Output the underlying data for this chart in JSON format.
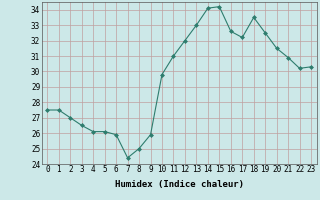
{
  "x": [
    0,
    1,
    2,
    3,
    4,
    5,
    6,
    7,
    8,
    9,
    10,
    11,
    12,
    13,
    14,
    15,
    16,
    17,
    18,
    19,
    20,
    21,
    22,
    23
  ],
  "y": [
    27.5,
    27.5,
    27.0,
    26.5,
    26.1,
    26.1,
    25.9,
    24.4,
    25.0,
    25.9,
    29.8,
    31.0,
    32.0,
    33.0,
    34.1,
    34.2,
    32.6,
    32.2,
    33.5,
    32.5,
    31.5,
    30.9,
    30.2,
    30.3
  ],
  "line_color": "#2e7d6e",
  "marker": "D",
  "markersize": 2.0,
  "linewidth": 0.8,
  "xlabel": "Humidex (Indice chaleur)",
  "xlim": [
    -0.5,
    23.5
  ],
  "ylim": [
    24,
    34.5
  ],
  "yticks": [
    24,
    25,
    26,
    27,
    28,
    29,
    30,
    31,
    32,
    33,
    34
  ],
  "xticks": [
    0,
    1,
    2,
    3,
    4,
    5,
    6,
    7,
    8,
    9,
    10,
    11,
    12,
    13,
    14,
    15,
    16,
    17,
    18,
    19,
    20,
    21,
    22,
    23
  ],
  "bg_color": "#cce8e8",
  "grid_color": "#c0a0a0",
  "axis_fontsize": 6.5,
  "tick_fontsize": 5.5
}
